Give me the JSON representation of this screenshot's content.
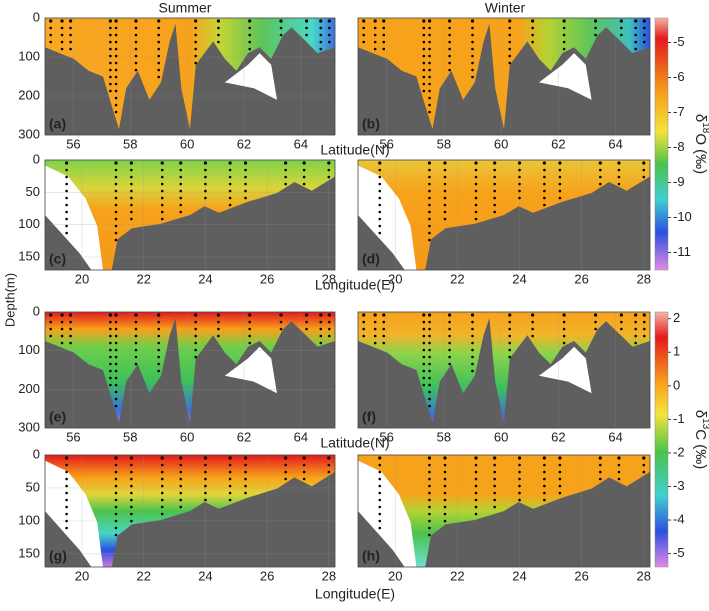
{
  "column_titles": [
    "Summer",
    "Winter"
  ],
  "y_label": "Depth(m)",
  "colorbars": [
    {
      "label_parts": [
        "δ",
        "18",
        "O (‰)"
      ],
      "lim": [
        -11.5,
        -4.3
      ],
      "ticks": [
        -5,
        -6,
        -7,
        -8,
        -9,
        -10,
        -11
      ]
    },
    {
      "label_parts": [
        "δ",
        "13",
        "C (‰)"
      ],
      "lim": [
        -5.4,
        2.2
      ],
      "ticks": [
        2,
        1,
        0,
        -1,
        -2,
        -3,
        -4,
        -5
      ]
    }
  ],
  "chart_data": [
    {
      "type": "contour",
      "panel_label": "(a)",
      "xlim": [
        55,
        65.2
      ],
      "ylim": [
        300,
        0
      ],
      "xticks": [
        56,
        58,
        60,
        62,
        64
      ],
      "yticks": [
        0,
        100,
        200,
        300
      ],
      "x_label": "Latitude(N)",
      "stations": [
        55.2,
        55.6,
        55.9,
        57.3,
        57.5,
        58.2,
        59.0,
        60.3,
        61.1,
        62.2,
        63.3,
        64.2,
        64.7,
        65.0
      ]
    },
    {
      "type": "contour",
      "panel_label": "(b)",
      "xlim": [
        55,
        65.2
      ],
      "ylim": [
        300,
        0
      ],
      "xticks": [
        56,
        58,
        60,
        62,
        64
      ],
      "stations": [
        55.2,
        55.6,
        55.9,
        57.3,
        57.5,
        58.2,
        59.0,
        60.3,
        61.1,
        62.2,
        63.3,
        64.2,
        64.7,
        65.0
      ]
    },
    {
      "type": "contour",
      "panel_label": "(c)",
      "xlim": [
        18.8,
        28.2
      ],
      "ylim": [
        170,
        0
      ],
      "xticks": [
        20,
        22,
        24,
        26,
        28
      ],
      "yticks": [
        0,
        50,
        100,
        150
      ],
      "x_label": "Longitude(E)",
      "stations": [
        19.5,
        21.1,
        21.6,
        22.6,
        23.2,
        24.0,
        24.8,
        25.3,
        26.6,
        27.2,
        28.0
      ]
    },
    {
      "type": "contour",
      "panel_label": "(d)",
      "xlim": [
        18.8,
        28.2
      ],
      "ylim": [
        170,
        0
      ],
      "xticks": [
        20,
        22,
        24,
        26,
        28
      ],
      "stations": [
        19.5,
        21.1,
        21.6,
        22.6,
        23.2,
        24.0,
        24.8,
        25.3,
        26.6,
        27.2,
        28.0
      ]
    },
    {
      "type": "contour",
      "panel_label": "(e)",
      "xlim": [
        55,
        65.2
      ],
      "ylim": [
        300,
        0
      ],
      "xticks": [
        56,
        58,
        60,
        62,
        64
      ],
      "yticks": [
        0,
        100,
        200,
        300
      ],
      "x_label": "Latitude(N)",
      "stations": [
        55.2,
        55.6,
        55.9,
        57.3,
        57.5,
        58.2,
        59.0,
        60.3,
        61.1,
        62.2,
        63.3,
        64.2,
        64.7,
        65.0
      ]
    },
    {
      "type": "contour",
      "panel_label": "(f)",
      "xlim": [
        55,
        65.2
      ],
      "ylim": [
        300,
        0
      ],
      "xticks": [
        56,
        58,
        60,
        62,
        64
      ],
      "stations": [
        55.2,
        55.6,
        55.9,
        57.3,
        57.5,
        58.2,
        59.0,
        60.3,
        61.1,
        62.2,
        63.3,
        64.2,
        64.7,
        65.0
      ]
    },
    {
      "type": "contour",
      "panel_label": "(g)",
      "xlim": [
        18.8,
        28.2
      ],
      "ylim": [
        170,
        0
      ],
      "xticks": [
        20,
        22,
        24,
        26,
        28
      ],
      "yticks": [
        0,
        50,
        100,
        150
      ],
      "x_label": "Longitude(E)",
      "stations": [
        19.5,
        21.1,
        21.6,
        22.6,
        23.2,
        24.0,
        24.8,
        25.3,
        26.6,
        27.2,
        28.0
      ]
    },
    {
      "type": "contour",
      "panel_label": "(h)",
      "xlim": [
        18.8,
        28.2
      ],
      "ylim": [
        170,
        0
      ],
      "xticks": [
        20,
        22,
        24,
        26,
        28
      ],
      "stations": [
        19.5,
        21.1,
        21.6,
        22.6,
        23.2,
        24.0,
        24.8,
        25.3,
        26.6,
        27.2,
        28.0
      ]
    }
  ]
}
